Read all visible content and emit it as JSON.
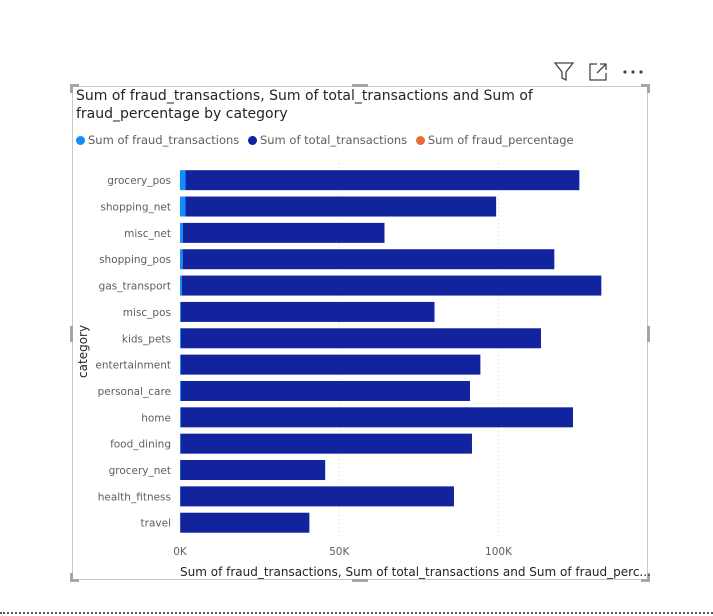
{
  "toolbar": {
    "filter_icon": "filter-icon",
    "focus_icon": "focus-mode-icon",
    "more_icon": "more-options-icon",
    "more_label": "···"
  },
  "visual": {
    "title": "Sum of fraud_transactions, Sum of total_transactions and Sum of fraud_percentage by category",
    "legend": [
      {
        "label": "Sum of fraud_transactions",
        "color": "#118DFF"
      },
      {
        "label": "Sum of total_transactions",
        "color": "#12239E"
      },
      {
        "label": "Sum of fraud_percentage",
        "color": "#E66C37"
      }
    ]
  },
  "chart_data": {
    "type": "bar",
    "orientation": "horizontal",
    "stacked": true,
    "title": "Sum of fraud_transactions, Sum of total_transactions and Sum of fraud_percentage by category",
    "ylabel": "category",
    "xlabel": "Sum of fraud_transactions, Sum of total_transactions and Sum of fraud_perc...",
    "xlim": [
      0,
      135000
    ],
    "xticks": [
      0,
      50000,
      100000
    ],
    "xtick_labels": [
      "0K",
      "50K",
      "100K"
    ],
    "categories": [
      "grocery_pos",
      "shopping_net",
      "misc_net",
      "shopping_pos",
      "gas_transport",
      "misc_pos",
      "kids_pets",
      "entertainment",
      "personal_care",
      "home",
      "food_dining",
      "grocery_net",
      "health_fitness",
      "travel"
    ],
    "series": [
      {
        "name": "Sum of fraud_transactions",
        "color": "#118DFF",
        "values": [
          1743,
          1713,
          915,
          843,
          618,
          250,
          304,
          292,
          290,
          265,
          205,
          134,
          133,
          116
        ]
      },
      {
        "name": "Sum of total_transactions",
        "color": "#12239E",
        "values": [
          123638,
          97543,
          63287,
          116672,
          131659,
          79655,
          113035,
          94014,
          90758,
          123115,
          91461,
          45452,
          85879,
          40507
        ]
      },
      {
        "name": "Sum of fraud_percentage",
        "color": "#E66C37",
        "values": [
          1.41,
          1.76,
          1.45,
          0.72,
          0.47,
          0.31,
          0.27,
          0.31,
          0.32,
          0.22,
          0.22,
          0.29,
          0.15,
          0.29
        ]
      }
    ]
  }
}
